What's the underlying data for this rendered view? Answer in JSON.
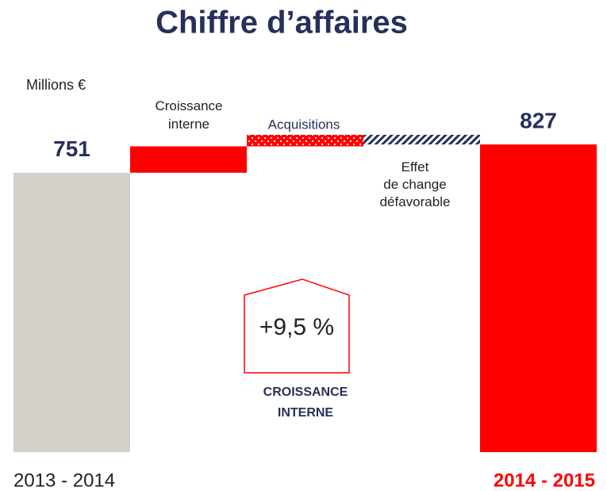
{
  "chart_data": {
    "type": "waterfall",
    "title": "Chiffre d’affaires",
    "unit_label": "Millions €",
    "categories": [
      "2013 - 2014",
      "Croissance\ninterne",
      "Acquisitions",
      "Effet\nde change\ndéfavorable",
      "2014 - 2015"
    ],
    "values": [
      751,
      71,
      31,
      -26,
      827
    ],
    "totals": [
      true,
      false,
      false,
      false,
      true
    ],
    "colors": [
      "#d3d0ca",
      "#ff0000",
      "#ff0000",
      "#27305a",
      "#ff0000"
    ],
    "patterns": [
      null,
      null,
      "dots",
      "hatch",
      null
    ],
    "ylim": [
      0,
      1000
    ],
    "annotation": "+9,5 %",
    "annotation_caption": "CROISSANCE\nINTERNE"
  }
}
